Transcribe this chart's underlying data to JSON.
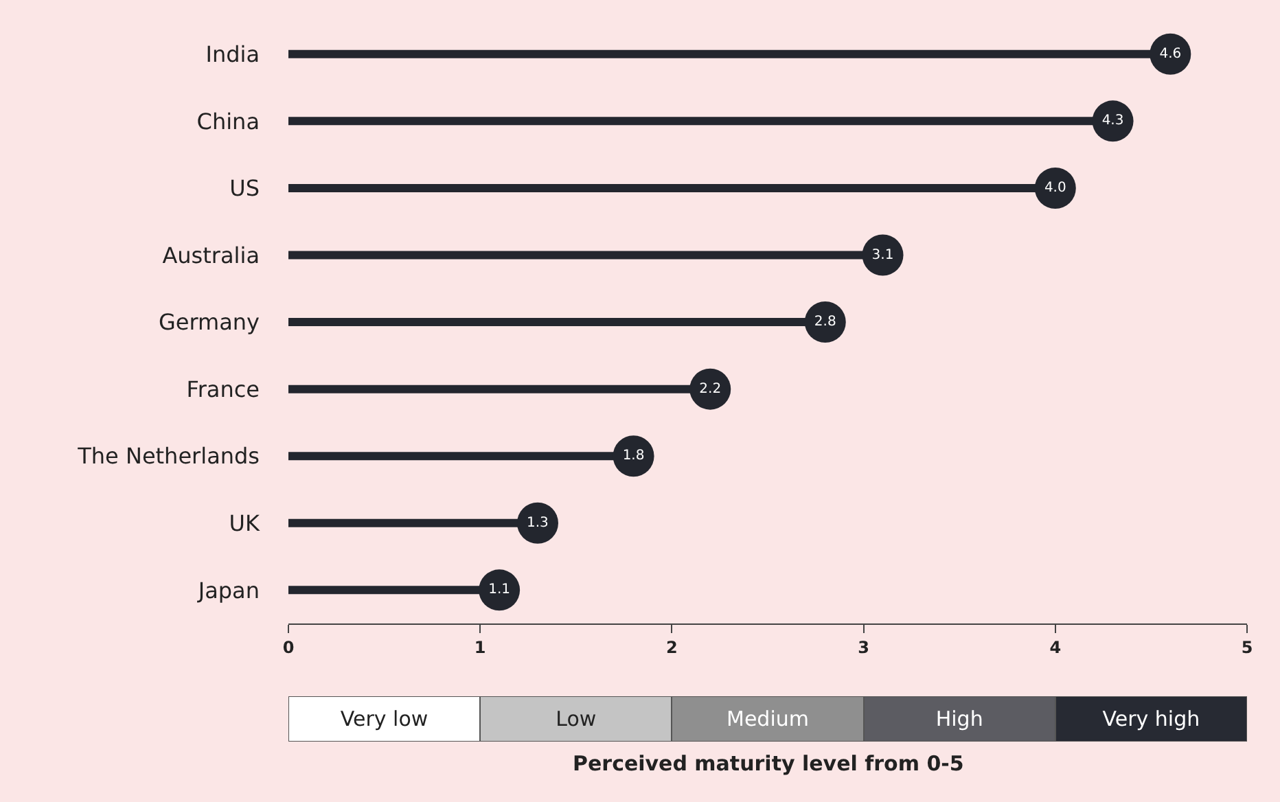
{
  "chart_data": [
    {
      "type": "lollipop",
      "orientation": "horizontal",
      "categories": [
        "India",
        "China",
        "US",
        "Australia",
        "Germany",
        "France",
        "The Netherlands",
        "UK",
        "Japan"
      ],
      "values": [
        4.6,
        4.3,
        4.0,
        3.1,
        2.8,
        2.2,
        1.8,
        1.3,
        1.1
      ],
      "value_labels": [
        "4.6",
        "4.3",
        "4.0",
        "3.1",
        "2.8",
        "2.2",
        "1.8",
        "1.3",
        "1.1"
      ],
      "color": "#23262e",
      "xlim": [
        0,
        5
      ],
      "xticks": [
        0,
        1,
        2,
        3,
        4,
        5
      ],
      "grid": false
    },
    {
      "type": "bar",
      "orientation": "horizontal",
      "stacked": true,
      "categories": [
        null
      ],
      "series": [
        {
          "name": "Very low",
          "color": "#ffffff",
          "values": [
            1
          ]
        },
        {
          "name": "Low",
          "color": "#c4c4c4",
          "values": [
            1
          ]
        },
        {
          "name": "Medium",
          "color": "#8f8f8f",
          "values": [
            1
          ]
        },
        {
          "name": "High",
          "color": "#5c5c62",
          "values": [
            1
          ]
        },
        {
          "name": "Very high",
          "color": "#272a33",
          "values": [
            1
          ]
        }
      ],
      "xlim": [
        0,
        5
      ],
      "xticks": [
        0,
        1,
        2,
        3,
        4,
        5
      ],
      "tick_labels": false,
      "xlabel": "Perceived maturity level from 0-5",
      "grid": false
    }
  ]
}
